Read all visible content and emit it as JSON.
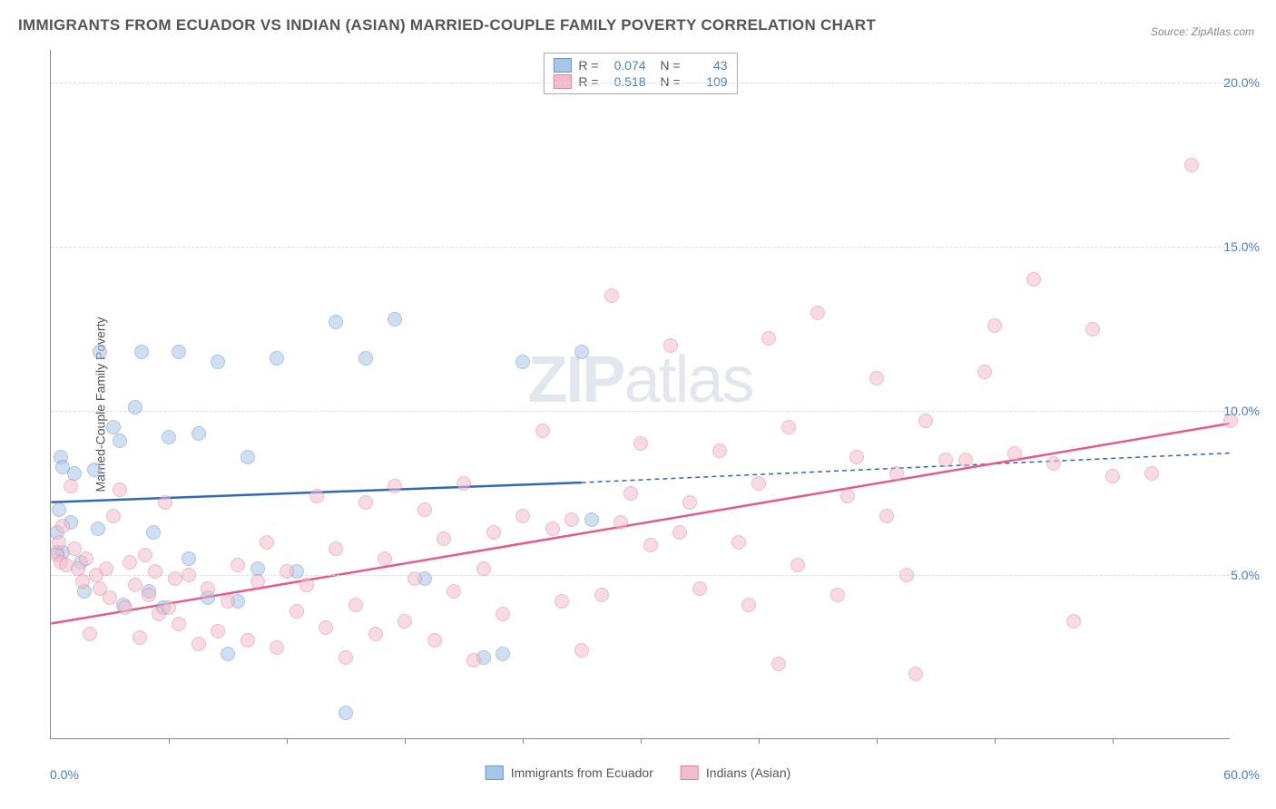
{
  "title": "IMMIGRANTS FROM ECUADOR VS INDIAN (ASIAN) MARRIED-COUPLE FAMILY POVERTY CORRELATION CHART",
  "source": "Source: ZipAtlas.com",
  "watermark_zip": "ZIP",
  "watermark_atlas": "atlas",
  "y_axis_label": "Married-Couple Family Poverty",
  "chart": {
    "type": "scatter",
    "background_color": "#ffffff",
    "grid_color": "#dddddd",
    "axis_color": "#888888",
    "tick_label_color": "#4a7fc9",
    "text_color": "#555555",
    "title_fontsize": 17,
    "label_fontsize": 14,
    "xlim": [
      0,
      60
    ],
    "ylim": [
      0,
      21
    ],
    "x_ticks": [
      0,
      60
    ],
    "x_tick_labels": [
      "0.0%",
      "60.0%"
    ],
    "x_minor_ticks": [
      6,
      12,
      18,
      24,
      30,
      36,
      42,
      48,
      54
    ],
    "y_ticks": [
      5,
      10,
      15,
      20
    ],
    "y_tick_labels": [
      "5.0%",
      "10.0%",
      "15.0%",
      "20.0%"
    ],
    "point_radius": 8,
    "point_opacity": 0.55,
    "series": [
      {
        "name": "Immigrants from Ecuador",
        "color": "#7fa9d9",
        "fill": "#a8c6e8",
        "stroke": "#6a97cc",
        "stat_R": "0.074",
        "stat_N": "43",
        "regression": {
          "x1": 0,
          "y1": 7.2,
          "x2": 27,
          "y2": 7.8,
          "x2_ext": 60,
          "y2_ext": 8.7,
          "color": "#3068b5",
          "width": 2.5
        },
        "points": [
          [
            0.3,
            6.3
          ],
          [
            0.3,
            5.7
          ],
          [
            0.4,
            7.0
          ],
          [
            0.5,
            8.6
          ],
          [
            0.6,
            8.3
          ],
          [
            0.6,
            5.7
          ],
          [
            1.0,
            6.6
          ],
          [
            1.2,
            8.1
          ],
          [
            1.5,
            5.4
          ],
          [
            1.7,
            4.5
          ],
          [
            2.2,
            8.2
          ],
          [
            2.4,
            6.4
          ],
          [
            2.5,
            11.8
          ],
          [
            3.2,
            9.5
          ],
          [
            3.5,
            9.1
          ],
          [
            3.7,
            4.1
          ],
          [
            4.3,
            10.1
          ],
          [
            4.6,
            11.8
          ],
          [
            5.0,
            4.5
          ],
          [
            5.2,
            6.3
          ],
          [
            5.7,
            4.0
          ],
          [
            6.0,
            9.2
          ],
          [
            6.5,
            11.8
          ],
          [
            7.0,
            5.5
          ],
          [
            7.5,
            9.3
          ],
          [
            8.0,
            4.3
          ],
          [
            8.5,
            11.5
          ],
          [
            9.0,
            2.6
          ],
          [
            9.5,
            4.2
          ],
          [
            10.0,
            8.6
          ],
          [
            10.5,
            5.2
          ],
          [
            11.5,
            11.6
          ],
          [
            12.5,
            5.1
          ],
          [
            14.5,
            12.7
          ],
          [
            15.0,
            0.8
          ],
          [
            16.0,
            11.6
          ],
          [
            17.5,
            12.8
          ],
          [
            19.0,
            4.9
          ],
          [
            22.0,
            2.5
          ],
          [
            23.0,
            2.6
          ],
          [
            24.0,
            11.5
          ],
          [
            27.0,
            11.8
          ],
          [
            27.5,
            6.7
          ]
        ]
      },
      {
        "name": "Indians (Asian)",
        "color": "#e89bb0",
        "fill": "#f3bccb",
        "stroke": "#e086a0",
        "stat_R": "0.518",
        "stat_N": "109",
        "regression": {
          "x1": 0,
          "y1": 3.5,
          "x2": 60,
          "y2": 9.6,
          "color": "#e45b85",
          "width": 2.5
        },
        "points": [
          [
            0.3,
            5.6
          ],
          [
            0.4,
            6.0
          ],
          [
            0.5,
            5.4
          ],
          [
            0.6,
            6.5
          ],
          [
            0.8,
            5.3
          ],
          [
            1.0,
            7.7
          ],
          [
            1.2,
            5.8
          ],
          [
            1.4,
            5.2
          ],
          [
            1.6,
            4.8
          ],
          [
            1.8,
            5.5
          ],
          [
            2.0,
            3.2
          ],
          [
            2.3,
            5.0
          ],
          [
            2.5,
            4.6
          ],
          [
            2.8,
            5.2
          ],
          [
            3.0,
            4.3
          ],
          [
            3.2,
            6.8
          ],
          [
            3.5,
            7.6
          ],
          [
            3.8,
            4.0
          ],
          [
            4.0,
            5.4
          ],
          [
            4.3,
            4.7
          ],
          [
            4.5,
            3.1
          ],
          [
            4.8,
            5.6
          ],
          [
            5.0,
            4.4
          ],
          [
            5.3,
            5.1
          ],
          [
            5.5,
            3.8
          ],
          [
            5.8,
            7.2
          ],
          [
            6.0,
            4.0
          ],
          [
            6.3,
            4.9
          ],
          [
            6.5,
            3.5
          ],
          [
            7.0,
            5.0
          ],
          [
            7.5,
            2.9
          ],
          [
            8.0,
            4.6
          ],
          [
            8.5,
            3.3
          ],
          [
            9.0,
            4.2
          ],
          [
            9.5,
            5.3
          ],
          [
            10.0,
            3.0
          ],
          [
            10.5,
            4.8
          ],
          [
            11.0,
            6.0
          ],
          [
            11.5,
            2.8
          ],
          [
            12.0,
            5.1
          ],
          [
            12.5,
            3.9
          ],
          [
            13.0,
            4.7
          ],
          [
            13.5,
            7.4
          ],
          [
            14.0,
            3.4
          ],
          [
            14.5,
            5.8
          ],
          [
            15.0,
            2.5
          ],
          [
            15.5,
            4.1
          ],
          [
            16.0,
            7.2
          ],
          [
            16.5,
            3.2
          ],
          [
            17.0,
            5.5
          ],
          [
            17.5,
            7.7
          ],
          [
            18.0,
            3.6
          ],
          [
            18.5,
            4.9
          ],
          [
            19.0,
            7.0
          ],
          [
            19.5,
            3.0
          ],
          [
            20.0,
            6.1
          ],
          [
            20.5,
            4.5
          ],
          [
            21.0,
            7.8
          ],
          [
            21.5,
            2.4
          ],
          [
            22.0,
            5.2
          ],
          [
            22.5,
            6.3
          ],
          [
            23.0,
            3.8
          ],
          [
            24.0,
            6.8
          ],
          [
            25.0,
            9.4
          ],
          [
            25.5,
            6.4
          ],
          [
            26.0,
            4.2
          ],
          [
            26.5,
            6.7
          ],
          [
            27.0,
            2.7
          ],
          [
            28.0,
            4.4
          ],
          [
            28.5,
            13.5
          ],
          [
            29.0,
            6.6
          ],
          [
            29.5,
            7.5
          ],
          [
            30.0,
            9.0
          ],
          [
            30.5,
            5.9
          ],
          [
            31.5,
            12.0
          ],
          [
            32.0,
            6.3
          ],
          [
            32.5,
            7.2
          ],
          [
            33.0,
            4.6
          ],
          [
            34.0,
            8.8
          ],
          [
            35.0,
            6.0
          ],
          [
            35.5,
            4.1
          ],
          [
            36.0,
            7.8
          ],
          [
            36.5,
            12.2
          ],
          [
            37.0,
            2.3
          ],
          [
            37.5,
            9.5
          ],
          [
            38.0,
            5.3
          ],
          [
            39.0,
            13.0
          ],
          [
            40.0,
            4.4
          ],
          [
            40.5,
            7.4
          ],
          [
            41.0,
            8.6
          ],
          [
            42.0,
            11.0
          ],
          [
            42.5,
            6.8
          ],
          [
            43.0,
            8.1
          ],
          [
            43.5,
            5.0
          ],
          [
            44.0,
            2.0
          ],
          [
            44.5,
            9.7
          ],
          [
            45.5,
            8.5
          ],
          [
            46.5,
            8.5
          ],
          [
            47.5,
            11.2
          ],
          [
            48.0,
            12.6
          ],
          [
            49.0,
            8.7
          ],
          [
            50.0,
            14.0
          ],
          [
            51.0,
            8.4
          ],
          [
            52.0,
            3.6
          ],
          [
            53.0,
            12.5
          ],
          [
            54.0,
            8.0
          ],
          [
            56.0,
            8.1
          ],
          [
            58.0,
            17.5
          ],
          [
            60.0,
            9.7
          ]
        ]
      }
    ],
    "legend_bottom": [
      {
        "label": "Immigrants from Ecuador",
        "fill": "#a8c6e8",
        "stroke": "#6a97cc"
      },
      {
        "label": "Indians (Asian)",
        "fill": "#f3bccb",
        "stroke": "#e086a0"
      }
    ]
  }
}
